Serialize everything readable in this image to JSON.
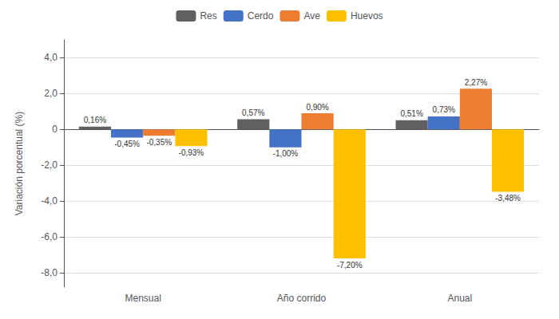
{
  "chart_data": {
    "type": "bar",
    "categories": [
      "Mensual",
      "Año corrido",
      "Anual"
    ],
    "series": [
      {
        "name": "Res",
        "color": "#606060",
        "values": [
          0.16,
          0.57,
          0.51
        ],
        "value_labels": [
          "0,16%",
          "0,57%",
          "0,51%"
        ]
      },
      {
        "name": "Cerdo",
        "color": "#4472C4",
        "values": [
          -0.45,
          -1.0,
          0.73
        ],
        "value_labels": [
          "-0,45%",
          "-1,00%",
          "0,73%"
        ]
      },
      {
        "name": "Ave",
        "color": "#ED7D31",
        "values": [
          -0.35,
          0.9,
          2.27
        ],
        "value_labels": [
          "-0,35%",
          "0,90%",
          "2,27%"
        ]
      },
      {
        "name": "Huevos",
        "color": "#FFC000",
        "values": [
          -0.93,
          -7.2,
          -3.48
        ],
        "value_labels": [
          "-0,93%",
          "-7,20%",
          "-3,48%"
        ]
      }
    ],
    "ylabel": "Variación porcentual (%)",
    "ylim": [
      -8.8,
      5.0
    ],
    "yticks": [
      {
        "value": -8.0,
        "label": "-8,0"
      },
      {
        "value": -6.0,
        "label": "-6,0"
      },
      {
        "value": -4.0,
        "label": "-4,0"
      },
      {
        "value": -2.0,
        "label": "-2,0"
      },
      0,
      {
        "value": 2.0,
        "label": "2,0"
      },
      {
        "value": 4.0,
        "label": "4,0"
      }
    ],
    "grid": true,
    "legend": "top",
    "data_labels": true
  }
}
